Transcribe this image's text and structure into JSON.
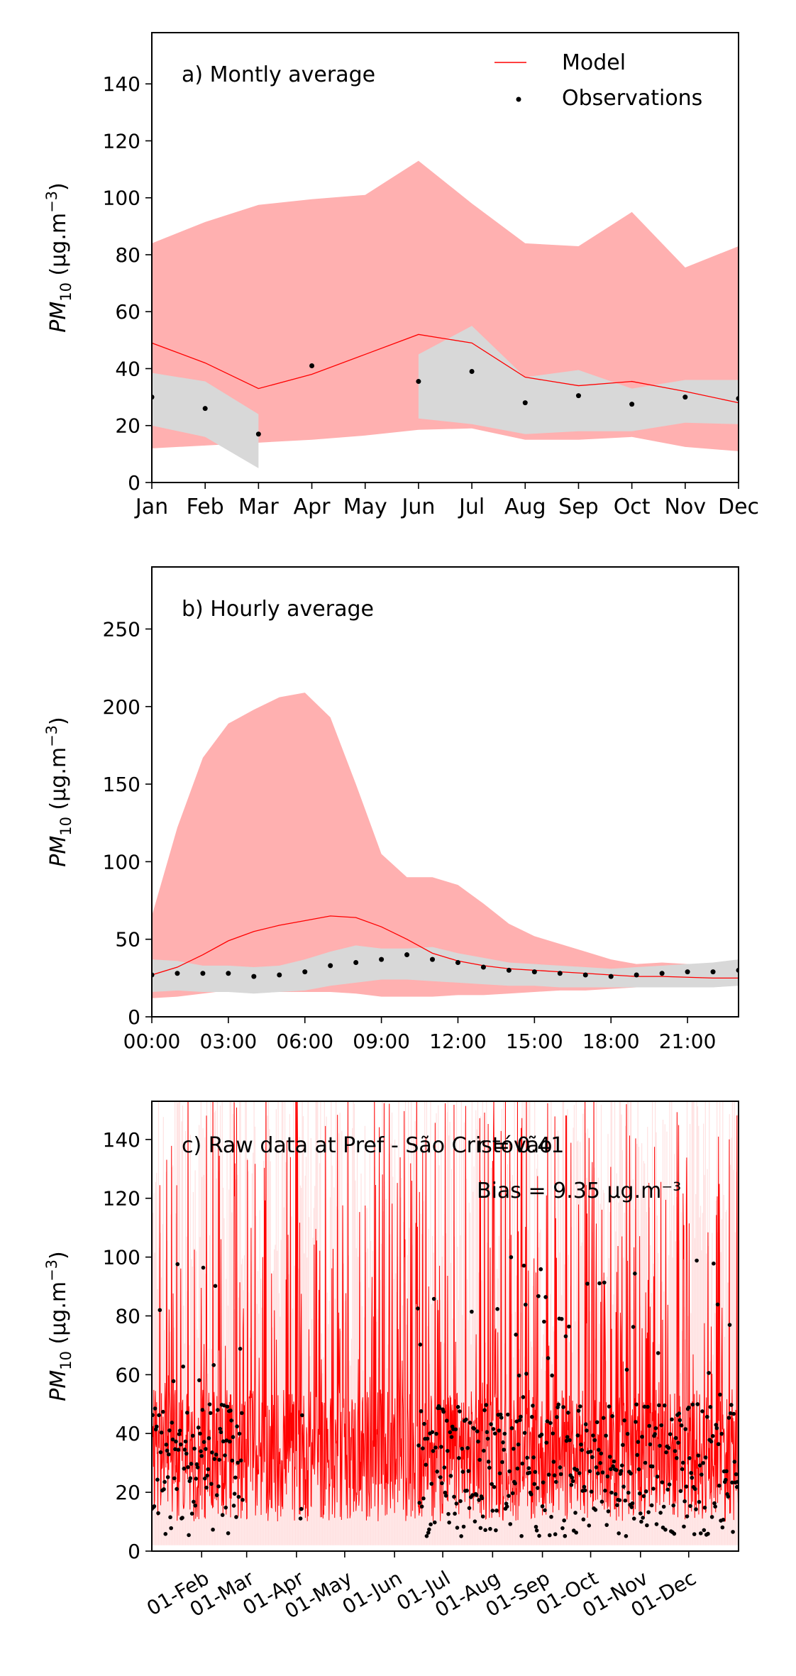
{
  "figure": {
    "ylabel_main": "PM",
    "ylabel_sub": "10",
    "ylabel_unit": " (μg.m",
    "ylabel_exp": "−3",
    "ylabel_close": ")"
  },
  "chart_data": [
    {
      "type": "line",
      "panel": "a",
      "title": "a) Montly average",
      "categories": [
        "Jan",
        "Feb",
        "Mar",
        "Apr",
        "May",
        "Jun",
        "Jul",
        "Aug",
        "Sep",
        "Oct",
        "Nov",
        "Dec"
      ],
      "ylim": [
        0,
        158
      ],
      "yticks": [
        0,
        20,
        40,
        60,
        80,
        100,
        120,
        140
      ],
      "legend": {
        "placement": "top-right",
        "entries": [
          "Model",
          "Observations"
        ]
      },
      "series": [
        {
          "name": "Model",
          "kind": "line",
          "values": [
            49,
            42,
            33,
            38,
            45,
            52,
            49,
            37,
            34,
            35.5,
            32,
            28
          ]
        },
        {
          "name": "Observations",
          "kind": "points",
          "values": [
            30,
            26,
            17,
            41,
            null,
            35.5,
            39,
            28,
            30.5,
            27.5,
            30,
            29.5
          ]
        },
        {
          "kind": "band",
          "color": "#ffb0b0",
          "lower": [
            12,
            13,
            14,
            15,
            16.5,
            18.5,
            19,
            15,
            15,
            16,
            12.5,
            11
          ],
          "upper": [
            84,
            91.5,
            97.5,
            99.5,
            101,
            113,
            98,
            84,
            83,
            95,
            75.5,
            83
          ]
        },
        {
          "kind": "band",
          "color": "#d8d8d8",
          "lower": [
            20,
            16,
            5,
            null,
            null,
            22.5,
            20.5,
            17,
            18,
            18,
            21,
            20.5
          ],
          "upper": [
            38.5,
            35.5,
            24,
            null,
            null,
            45,
            55,
            37,
            39.5,
            33,
            36,
            36
          ]
        }
      ]
    },
    {
      "type": "line",
      "panel": "b",
      "title": "b) Hourly average",
      "x_ticklabels": [
        "00:00",
        "03:00",
        "06:00",
        "09:00",
        "12:00",
        "15:00",
        "18:00",
        "21:00"
      ],
      "xlim": [
        0,
        23
      ],
      "ylim": [
        0,
        290
      ],
      "yticks": [
        0,
        50,
        100,
        150,
        200,
        250
      ],
      "series": [
        {
          "name": "Model",
          "kind": "line",
          "x": [
            0,
            1,
            2,
            3,
            4,
            5,
            6,
            7,
            8,
            9,
            10,
            11,
            12,
            13,
            14,
            15,
            16,
            17,
            18,
            19,
            20,
            21,
            22,
            23
          ],
          "values": [
            27,
            32,
            40,
            49,
            55,
            59,
            62,
            65,
            64,
            58,
            50,
            41,
            36,
            33,
            31,
            30,
            29,
            28,
            27,
            26,
            26,
            25.5,
            25,
            25
          ]
        },
        {
          "name": "Observations",
          "kind": "points",
          "x": [
            0,
            1,
            2,
            3,
            4,
            5,
            6,
            7,
            8,
            9,
            10,
            11,
            12,
            13,
            14,
            15,
            16,
            17,
            18,
            19,
            20,
            21,
            22,
            23
          ],
          "values": [
            27,
            28,
            28,
            28,
            26,
            27,
            29,
            33,
            35,
            37,
            40,
            37,
            35,
            32,
            30,
            29,
            28,
            27,
            26,
            27,
            28,
            29,
            29,
            30
          ]
        },
        {
          "kind": "band",
          "color": "#ffb0b0",
          "x": [
            0,
            1,
            2,
            3,
            4,
            5,
            6,
            7,
            8,
            9,
            10,
            11,
            12,
            13,
            14,
            15,
            16,
            17,
            18,
            19,
            20,
            21,
            22,
            23
          ],
          "lower": [
            12,
            13,
            15,
            17,
            17,
            16,
            16,
            16,
            15,
            13,
            13,
            13,
            14,
            14,
            15,
            16,
            17,
            17,
            18,
            19,
            19,
            20,
            20,
            21
          ],
          "upper": [
            65,
            122,
            167,
            189,
            198,
            206,
            209,
            193,
            150,
            105,
            90,
            90,
            85,
            73,
            60,
            52,
            47,
            42,
            37,
            34,
            35,
            34,
            34,
            35
          ]
        },
        {
          "kind": "band",
          "color": "#d8d8d8",
          "x": [
            0,
            1,
            2,
            3,
            4,
            5,
            6,
            7,
            8,
            9,
            10,
            11,
            12,
            13,
            14,
            15,
            16,
            17,
            18,
            19,
            20,
            21,
            22,
            23
          ],
          "lower": [
            16,
            17,
            16,
            16,
            15,
            16,
            17,
            20,
            22,
            24,
            24,
            23,
            22,
            21,
            20,
            20,
            19,
            19,
            19,
            19,
            19,
            19,
            19,
            20
          ],
          "upper": [
            37,
            36,
            33,
            33,
            32,
            33,
            37,
            42,
            46,
            44,
            44,
            45,
            41,
            38,
            35,
            34,
            33,
            32,
            31,
            32,
            33,
            34,
            35,
            37
          ]
        }
      ]
    },
    {
      "type": "line",
      "panel": "c",
      "title": "c) Raw data at Pref - São Cristóvão",
      "annotations": [
        "r = 0.41",
        "Bias = 9.35 μg.m⁻³"
      ],
      "x_ticklabels": [
        "01-Feb",
        "01-Mar",
        "01-Apr",
        "01-May",
        "01-Jun",
        "01-Jul",
        "01-Aug",
        "01-Sep",
        "01-Oct",
        "01-Nov",
        "01-Dec"
      ],
      "x_tick_days": [
        31,
        59,
        90,
        120,
        151,
        181,
        212,
        243,
        273,
        304,
        334
      ],
      "xlim": [
        0,
        365
      ],
      "ylim": [
        0,
        153
      ],
      "yticks": [
        0,
        20,
        40,
        60,
        80,
        100,
        120,
        140
      ],
      "observation_gaps": [
        [
          57,
          92
        ],
        [
          94,
          165
        ]
      ],
      "series": [
        {
          "name": "Model",
          "kind": "hourly line",
          "color": "#ff0000"
        },
        {
          "name": "Observations",
          "kind": "hourly points",
          "color": "#000000"
        },
        {
          "kind": "band",
          "color": "#ffc0c0",
          "description_values": "hourly spread"
        }
      ]
    }
  ]
}
